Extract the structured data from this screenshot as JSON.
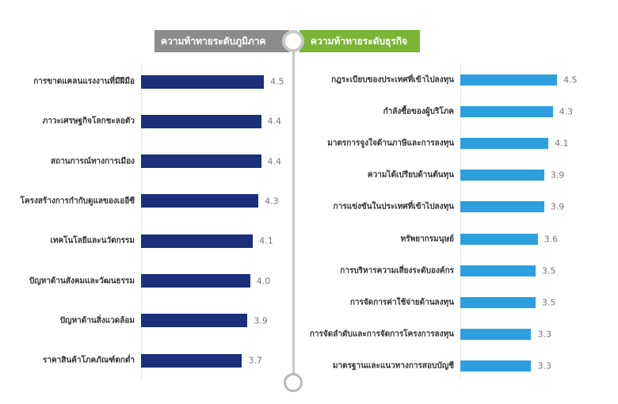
{
  "chart_data": [
    {
      "type": "bar",
      "orientation": "horizontal",
      "title": "ความท้าทายระดับภูมิภาค",
      "color": "#1b2f7a",
      "header_color": "#8c8c8c",
      "categories": [
        "การขาดแคลนแรงงานที่มีฝีมือ",
        "ภาวะเศรษฐกิจโลกชะลอตัว",
        "สถานการณ์ทางการเมือง",
        "โครงสร้างการกำกับดูแลของเออีซี",
        "เทคโนโลยีและนวัตกรรม",
        "ปัญหาด้านสังคมและวัฒนธรรม",
        "ปัญหาด้านสิ่งแวดล้อม",
        "ราคาสินค้าโภคภัณฑ์ตกต่ำ"
      ],
      "values": [
        4.5,
        4.4,
        4.4,
        4.3,
        4.1,
        4.0,
        3.9,
        3.7
      ],
      "value_labels": [
        "4.5",
        "4.4",
        "4.4",
        "4.3",
        "4.1",
        "4.0",
        "3.9",
        "3.7"
      ],
      "xlim": [
        0,
        4.5
      ],
      "grid": false
    },
    {
      "type": "bar",
      "orientation": "horizontal",
      "title": "ความท้าทายระดับธุรกิจ",
      "color": "#2e9fde",
      "header_color": "#7ab535",
      "categories": [
        "กฎระเบียบของประเทศที่เข้าไปลงทุน",
        "กำลังซื้อของผู้บริโภค",
        "มาตรการจูงใจด้านภาษีและการลงทุน",
        "ความได้เปรียบด้านต้นทุน",
        "การแข่งขันในประเทศที่เข้าไปลงทุน",
        "ทรัพยากรมนุษย์",
        "การบริหารความเสี่ยงระดับองค์กร",
        "การจัดการค่าใช้จ่ายด้านลงทุน",
        "การจัดลำดับและการจัดการโครงการลงทุน",
        "มาตรฐานและแนวทางการสอบบัญชี"
      ],
      "values": [
        4.5,
        4.3,
        4.1,
        3.9,
        3.9,
        3.6,
        3.5,
        3.5,
        3.3,
        3.3
      ],
      "value_labels": [
        "4.5",
        "4.3",
        "4.1",
        "3.9",
        "3.9",
        "3.6",
        "3.5",
        "3.5",
        "3.3",
        "3.3"
      ],
      "xlim": [
        0,
        4.5
      ],
      "grid": false
    }
  ]
}
